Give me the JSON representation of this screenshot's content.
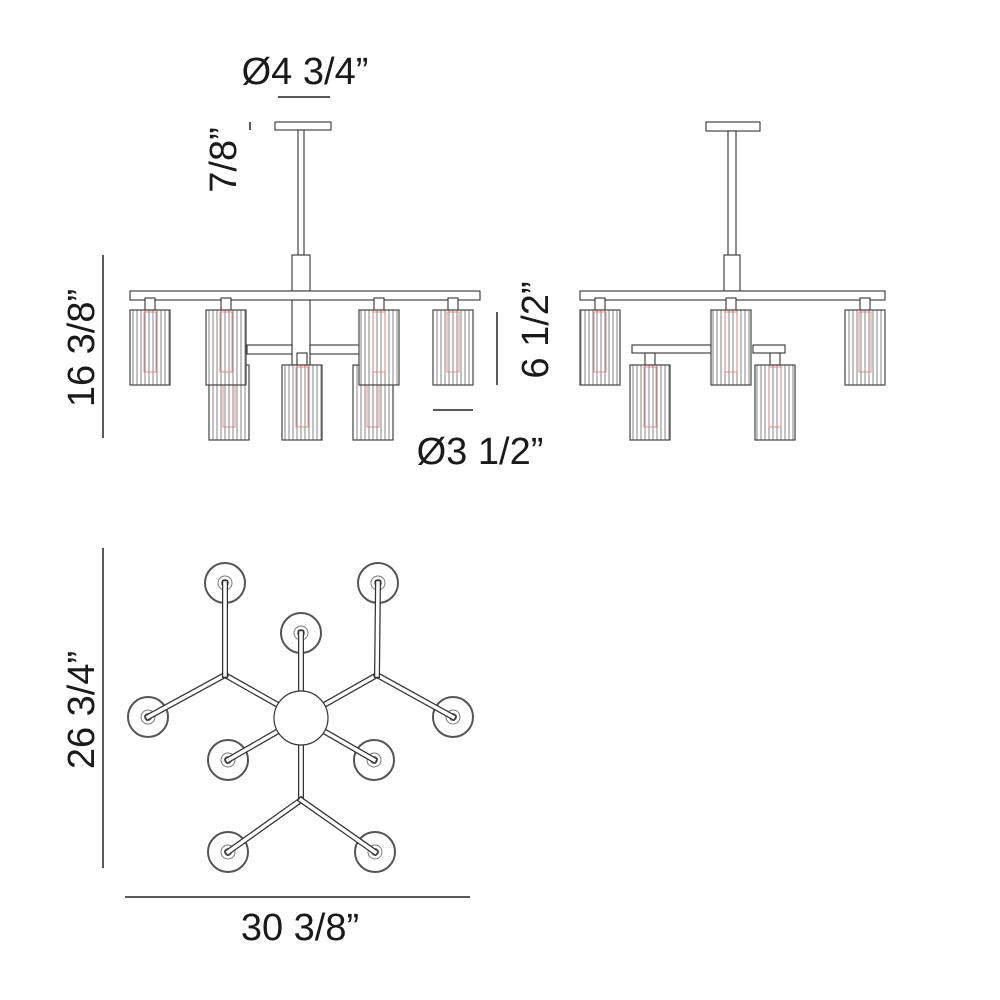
{
  "dimensions": {
    "canopy_diameter": "Ø4 3/4”",
    "canopy_height": "7/8”",
    "overall_height": "16 3/8”",
    "shade_height": "6 1/2”",
    "shade_diameter": "Ø3 1/2”",
    "overall_depth": "26 3/4”",
    "overall_width": "30 3/8”"
  },
  "colors": {
    "line": "#333333",
    "bulb": "#e88080",
    "text": "#1a1a1a"
  }
}
